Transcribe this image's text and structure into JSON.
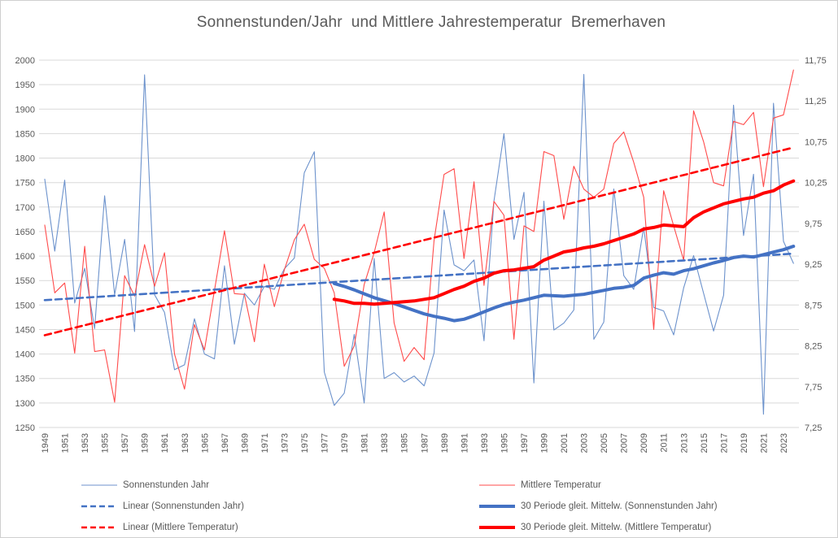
{
  "chart_data": {
    "type": "line",
    "title": "Sonnenstunden/Jahr  und Mittlere Jahrestemperatur  Bremerhaven",
    "x_start_year": 1949,
    "x_end_year": 2024,
    "axes": {
      "left": {
        "min": 1250,
        "max": 2000,
        "step": 50,
        "tick_labels": [
          "1250",
          "1300",
          "1350",
          "1400",
          "1450",
          "1500",
          "1550",
          "1600",
          "1650",
          "1700",
          "1750",
          "1800",
          "1850",
          "1900",
          "1950",
          "2000"
        ]
      },
      "right": {
        "min": 7.25,
        "max": 11.75,
        "step": 0.5,
        "decimal_comma": true,
        "tick_labels": [
          "7,25",
          "7,75",
          "8,25",
          "8,75",
          "9,25",
          "9,75",
          "10,25",
          "10,75",
          "11,25",
          "11,75"
        ]
      },
      "x": {
        "tick_years": [
          1949,
          1951,
          1953,
          1955,
          1957,
          1959,
          1961,
          1963,
          1965,
          1967,
          1969,
          1971,
          1973,
          1975,
          1977,
          1979,
          1981,
          1983,
          1985,
          1987,
          1989,
          1991,
          1993,
          1995,
          1997,
          1999,
          2001,
          2003,
          2005,
          2007,
          2009,
          2011,
          2013,
          2015,
          2017,
          2019,
          2021,
          2023
        ]
      }
    },
    "grid": "horizontal-only",
    "colors": {
      "thin_blue": "#6c92cc",
      "strong_blue": "#4472c4",
      "thin_red": "#ff4b4b",
      "strong_red": "#ff0000",
      "text_gray": "#595959",
      "gridline": "#d9d9d9"
    },
    "series": [
      {
        "name": "Sonnenstunden Jahr",
        "axis": "left",
        "style": "solid",
        "color": "#6c92cc",
        "width": 1.1,
        "start_year": 1949,
        "values": [
          1757,
          1610,
          1755,
          1504,
          1575,
          1452,
          1723,
          1521,
          1634,
          1446,
          1970,
          1521,
          1485,
          1368,
          1378,
          1472,
          1400,
          1390,
          1580,
          1420,
          1524,
          1500,
          1538,
          1532,
          1574,
          1596,
          1770,
          1813,
          1363,
          1295,
          1320,
          1440,
          1300,
          1595,
          1350,
          1362,
          1343,
          1355,
          1335,
          1402,
          1694,
          1582,
          1570,
          1592,
          1427,
          1712,
          1850,
          1634,
          1730,
          1341,
          1712,
          1449,
          1463,
          1490,
          1971,
          1430,
          1465,
          1737,
          1560,
          1532,
          1659,
          1495,
          1488,
          1439,
          1535,
          1601,
          1524,
          1447,
          1520,
          1908,
          1642,
          1767,
          1277,
          1912,
          1630,
          1585
        ]
      },
      {
        "name": "Mittlere Temperatur",
        "axis": "right",
        "style": "solid",
        "color": "#ff4b4b",
        "width": 1.1,
        "start_year": 1949,
        "values": [
          9.73,
          8.9,
          9.02,
          8.16,
          9.47,
          8.18,
          8.2,
          7.56,
          9.11,
          8.86,
          9.49,
          8.98,
          9.39,
          8.15,
          7.72,
          8.51,
          8.2,
          8.93,
          9.66,
          8.89,
          8.88,
          8.3,
          9.25,
          8.73,
          9.18,
          9.55,
          9.74,
          9.31,
          9.2,
          8.9,
          8.0,
          8.25,
          9.0,
          9.39,
          9.89,
          8.53,
          8.06,
          8.23,
          8.08,
          9.54,
          10.35,
          10.42,
          9.32,
          10.26,
          8.99,
          10.02,
          9.85,
          8.33,
          9.72,
          9.65,
          10.63,
          10.58,
          9.8,
          10.45,
          10.17,
          10.07,
          10.17,
          10.73,
          10.87,
          10.5,
          10.07,
          8.45,
          10.15,
          9.72,
          9.3,
          11.13,
          10.75,
          10.25,
          10.21,
          11.0,
          10.96,
          11.11,
          10.2,
          11.04,
          11.08,
          11.63
        ]
      },
      {
        "name": "Linear (Sonnenstunden Jahr)",
        "axis": "left",
        "style": "dashed",
        "color": "#4472c4",
        "width": 2.6,
        "trend": {
          "start_year": 1949,
          "start_value": 1510,
          "end_year": 2024,
          "end_value": 1605
        }
      },
      {
        "name": "Linear (Mittlere Temperatur)",
        "axis": "right",
        "style": "dashed",
        "color": "#ff0000",
        "width": 2.6,
        "trend": {
          "start_year": 1949,
          "start_value": 8.38,
          "end_year": 2024,
          "end_value": 10.68
        }
      },
      {
        "name": "30 Periode gleit. Mittelw. (Sonnenstunden Jahr)",
        "axis": "left",
        "style": "solid",
        "color": "#4472c4",
        "width": 4,
        "start_year": 1978,
        "values": [
          1544,
          1538,
          1531,
          1523,
          1515,
          1509,
          1503,
          1496,
          1489,
          1482,
          1477,
          1473,
          1468,
          1471,
          1478,
          1486,
          1494,
          1501,
          1506,
          1510,
          1515,
          1520,
          1519,
          1518,
          1520,
          1522,
          1526,
          1530,
          1534,
          1536,
          1540,
          1555,
          1561,
          1566,
          1563,
          1570,
          1574,
          1580,
          1586,
          1591,
          1597,
          1600,
          1598,
          1603,
          1608,
          1613,
          1620
        ]
      },
      {
        "name": "30 Periode gleit. Mittelw. (Mittlere Temperatur)",
        "axis": "right",
        "style": "solid",
        "color": "#ff0000",
        "width": 4,
        "start_year": 1978,
        "values": [
          8.82,
          8.8,
          8.77,
          8.77,
          8.76,
          8.77,
          8.78,
          8.79,
          8.8,
          8.82,
          8.84,
          8.89,
          8.94,
          8.98,
          9.04,
          9.08,
          9.14,
          9.17,
          9.18,
          9.2,
          9.22,
          9.3,
          9.35,
          9.4,
          9.42,
          9.45,
          9.47,
          9.5,
          9.54,
          9.58,
          9.62,
          9.68,
          9.7,
          9.73,
          9.72,
          9.71,
          9.82,
          9.89,
          9.94,
          9.99,
          10.02,
          10.05,
          10.07,
          10.12,
          10.15,
          10.22,
          10.27
        ]
      }
    ],
    "legend": {
      "position": "bottom-two-columns",
      "col1_series": [
        0,
        2,
        3
      ],
      "col2_series": [
        1,
        4,
        5
      ]
    }
  }
}
